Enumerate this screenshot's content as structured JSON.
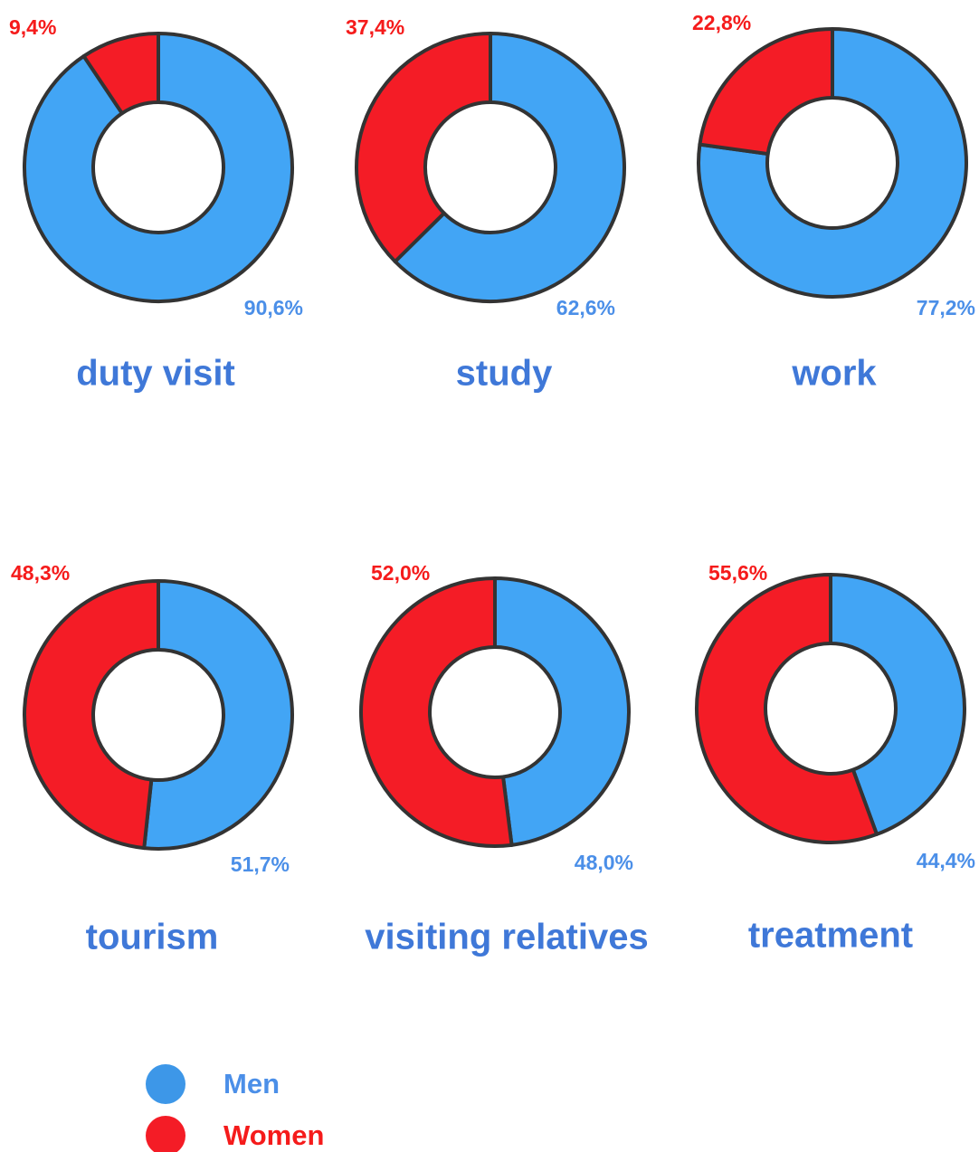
{
  "chart_data": [
    {
      "type": "donut",
      "title": "duty visit",
      "categories": [
        "Men",
        "Women"
      ],
      "values": [
        90.6,
        9.4
      ],
      "value_labels": [
        "90,6%",
        "9,4%"
      ],
      "colors": [
        "#42a5f5",
        "#f41c26"
      ]
    },
    {
      "type": "donut",
      "title": "study",
      "categories": [
        "Men",
        "Women"
      ],
      "values": [
        62.6,
        37.4
      ],
      "value_labels": [
        "62,6%",
        "37,4%"
      ],
      "colors": [
        "#42a5f5",
        "#f41c26"
      ]
    },
    {
      "type": "donut",
      "title": "work",
      "categories": [
        "Men",
        "Women"
      ],
      "values": [
        77.2,
        22.8
      ],
      "value_labels": [
        "77,2%",
        "22,8%"
      ],
      "colors": [
        "#42a5f5",
        "#f41c26"
      ]
    },
    {
      "type": "donut",
      "title": "tourism",
      "categories": [
        "Men",
        "Women"
      ],
      "values": [
        51.7,
        48.3
      ],
      "value_labels": [
        "51,7%",
        "48,3%"
      ],
      "colors": [
        "#42a5f5",
        "#f41c26"
      ]
    },
    {
      "type": "donut",
      "title": "visiting relatives",
      "categories": [
        "Men",
        "Women"
      ],
      "values": [
        48.0,
        52.0
      ],
      "value_labels": [
        "48,0%",
        "52,0%"
      ],
      "colors": [
        "#42a5f5",
        "#f41c26"
      ]
    },
    {
      "type": "donut",
      "title": "treatment",
      "categories": [
        "Men",
        "Women"
      ],
      "values": [
        44.4,
        55.6
      ],
      "value_labels": [
        "44,4%",
        "55,6%"
      ],
      "colors": [
        "#42a5f5",
        "#f41c26"
      ]
    }
  ]
}
